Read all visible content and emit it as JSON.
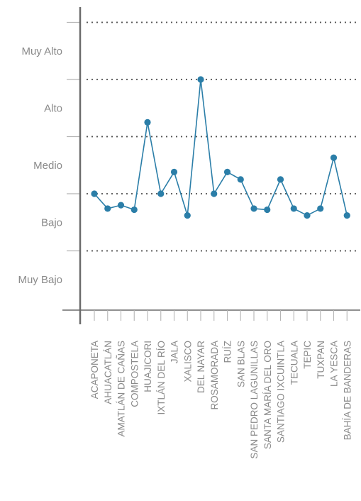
{
  "chart_data": {
    "type": "line",
    "categories": [
      "ACAPONETA",
      "AHUACATLÁN",
      "AMATLÁN DE CAÑAS",
      "COMPOSTELA",
      "HUAJICORI",
      "IXTLÁN DEL RÍO",
      "JALA",
      "XALISCO",
      "DEL NAYAR",
      "ROSAMORADA",
      "RUÍZ",
      "SAN BLAS",
      "SAN PEDRO LAGUNILLAS",
      "SANTA MARÍA DEL ORO",
      "SANTIAGO IXCUINTLA",
      "TECUALA",
      "TEPIC",
      "TUXPAN",
      "LA YESCA",
      "BAHÍA DE BANDERAS"
    ],
    "values": [
      2.0,
      1.74,
      1.8,
      1.72,
      3.25,
      2.0,
      2.38,
      1.62,
      4.0,
      2.0,
      2.38,
      2.25,
      1.74,
      1.72,
      2.25,
      1.74,
      1.62,
      1.74,
      2.63,
      1.62
    ],
    "ylim": [
      0,
      5
    ],
    "y_ticks": [
      1,
      2,
      3,
      4,
      5
    ],
    "y_levels": [
      {
        "label": "Muy Bajo",
        "value": 0.5
      },
      {
        "label": "Bajo",
        "value": 1.5
      },
      {
        "label": "Medio",
        "value": 2.5
      },
      {
        "label": "Alto",
        "value": 3.5
      },
      {
        "label": "Muy Alto",
        "value": 4.5
      }
    ],
    "grid": "dotted horizontal",
    "colors": {
      "line": "#2b7ea8",
      "marker": "#2b7ea8",
      "axis": "#6b6b6b",
      "grid": "#555555",
      "text": "#8a8a8a"
    }
  }
}
